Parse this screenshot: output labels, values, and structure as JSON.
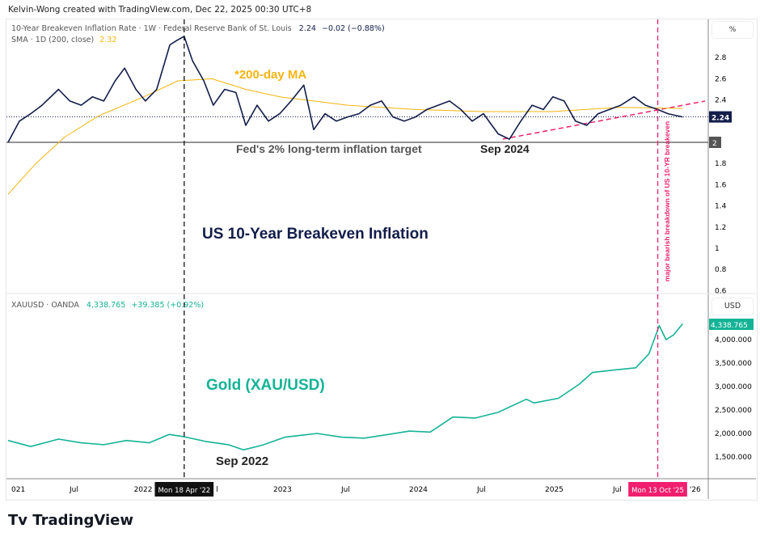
{
  "header": {
    "credit": "Kelvin-Wong created with TradingView.com, Dec 22, 2025 00:30 UTC+8"
  },
  "brand": {
    "logo_text": "TradingView"
  },
  "chart_data": [
    {
      "type": "line",
      "pane": "top",
      "legend": {
        "title": "10-Year Breakeven Inflation Rate · 1W · Federal Reserve Bank of St. Louis",
        "last": "2.24",
        "change": "−0.02 (−0.88%)",
        "sma_label": "SMA · 1D (200, close)",
        "sma_value": "2.32"
      },
      "axis_unit": "%",
      "yticks": [
        "2.8",
        "2.6",
        "2.4",
        "2",
        "1.8",
        "1.6",
        "1.4",
        "1.2",
        "1",
        "0.8",
        "0.6"
      ],
      "ylim": [
        0.55,
        3.1
      ],
      "price_label": "2.24",
      "level_label": "2",
      "series": [
        {
          "name": "10-Year Breakeven Inflation Rate",
          "color": "#131d4a",
          "points": [
            [
              "2021-01-01",
              2.0
            ],
            [
              "2021-02-01",
              2.2
            ],
            [
              "2021-03-01",
              2.27
            ],
            [
              "2021-04-01",
              2.35
            ],
            [
              "2021-05-15",
              2.5
            ],
            [
              "2021-06-15",
              2.39
            ],
            [
              "2021-07-15",
              2.35
            ],
            [
              "2021-08-15",
              2.43
            ],
            [
              "2021-09-15",
              2.39
            ],
            [
              "2021-10-15",
              2.58
            ],
            [
              "2021-11-10",
              2.7
            ],
            [
              "2021-12-10",
              2.5
            ],
            [
              "2022-01-05",
              2.39
            ],
            [
              "2022-02-05",
              2.5
            ],
            [
              "2022-03-10",
              2.92
            ],
            [
              "2022-03-28",
              2.96
            ],
            [
              "2022-04-18",
              3.0
            ],
            [
              "2022-05-10",
              2.77
            ],
            [
              "2022-06-10",
              2.58
            ],
            [
              "2022-07-05",
              2.35
            ],
            [
              "2022-08-05",
              2.5
            ],
            [
              "2022-09-05",
              2.47
            ],
            [
              "2022-10-01",
              2.16
            ],
            [
              "2022-11-01",
              2.35
            ],
            [
              "2022-12-01",
              2.2
            ],
            [
              "2023-01-01",
              2.27
            ],
            [
              "2023-02-01",
              2.39
            ],
            [
              "2023-03-05",
              2.54
            ],
            [
              "2023-04-01",
              2.12
            ],
            [
              "2023-05-01",
              2.27
            ],
            [
              "2023-06-01",
              2.2
            ],
            [
              "2023-07-01",
              2.24
            ],
            [
              "2023-08-01",
              2.27
            ],
            [
              "2023-09-01",
              2.35
            ],
            [
              "2023-10-01",
              2.39
            ],
            [
              "2023-11-01",
              2.24
            ],
            [
              "2023-12-01",
              2.2
            ],
            [
              "2024-01-01",
              2.24
            ],
            [
              "2024-02-01",
              2.31
            ],
            [
              "2024-03-01",
              2.35
            ],
            [
              "2024-04-01",
              2.39
            ],
            [
              "2024-05-01",
              2.31
            ],
            [
              "2024-06-01",
              2.2
            ],
            [
              "2024-07-01",
              2.27
            ],
            [
              "2024-08-10",
              2.08
            ],
            [
              "2024-09-10",
              2.03
            ],
            [
              "2024-10-10",
              2.2
            ],
            [
              "2024-11-10",
              2.35
            ],
            [
              "2024-12-10",
              2.31
            ],
            [
              "2025-01-05",
              2.43
            ],
            [
              "2025-02-05",
              2.39
            ],
            [
              "2025-03-05",
              2.2
            ],
            [
              "2025-04-05",
              2.16
            ],
            [
              "2025-05-05",
              2.27
            ],
            [
              "2025-06-05",
              2.31
            ],
            [
              "2025-07-05",
              2.35
            ],
            [
              "2025-08-10",
              2.43
            ],
            [
              "2025-09-10",
              2.35
            ],
            [
              "2025-10-13",
              2.31
            ],
            [
              "2025-11-10",
              2.27
            ],
            [
              "2025-12-19",
              2.24
            ]
          ]
        },
        {
          "name": "SMA 200",
          "color": "#f5b40f",
          "points": [
            [
              "2021-01-01",
              1.51
            ],
            [
              "2021-03-15",
              1.8
            ],
            [
              "2021-06-01",
              2.05
            ],
            [
              "2021-09-01",
              2.25
            ],
            [
              "2022-01-01",
              2.43
            ],
            [
              "2022-04-01",
              2.58
            ],
            [
              "2022-07-01",
              2.6
            ],
            [
              "2022-10-01",
              2.5
            ],
            [
              "2023-01-01",
              2.43
            ],
            [
              "2023-07-01",
              2.35
            ],
            [
              "2024-01-01",
              2.31
            ],
            [
              "2024-07-01",
              2.29
            ],
            [
              "2025-01-01",
              2.29
            ],
            [
              "2025-07-01",
              2.33
            ],
            [
              "2025-12-19",
              2.32
            ]
          ]
        }
      ],
      "annotations": {
        "sma_note": "*200-day MA",
        "target_note": "Fed's 2% long-term inflation target",
        "low_note": "Sep 2024",
        "title_note": "US 10-Year Breakeven Inflation",
        "breakdown_note": "major bearish breakdown of US 10-YR breakeven"
      },
      "colors": {
        "sma_note": "#f5b40f",
        "title_note": "#131d4a",
        "breakdown": "#f0206e"
      }
    },
    {
      "type": "line",
      "pane": "bottom",
      "legend": {
        "title": "XAUUSD · OANDA",
        "last": "4,338.765",
        "change": "+39.385 (+0.92%)"
      },
      "axis_unit": "USD",
      "yticks": [
        "4,000.000",
        "3,500.000",
        "3,000.000",
        "2,500.000",
        "2,000.000",
        "1,500.000"
      ],
      "ylim": [
        1300,
        4450
      ],
      "price_label": "4,338.765",
      "series": [
        {
          "name": "XAUUSD",
          "color": "#14b396",
          "points": [
            [
              "2021-01-01",
              1850
            ],
            [
              "2021-03-01",
              1720
            ],
            [
              "2021-05-15",
              1880
            ],
            [
              "2021-07-15",
              1800
            ],
            [
              "2021-09-15",
              1760
            ],
            [
              "2021-11-15",
              1850
            ],
            [
              "2022-01-15",
              1800
            ],
            [
              "2022-03-08",
              1980
            ],
            [
              "2022-04-18",
              1930
            ],
            [
              "2022-06-15",
              1830
            ],
            [
              "2022-08-15",
              1760
            ],
            [
              "2022-09-25",
              1650
            ],
            [
              "2022-11-15",
              1750
            ],
            [
              "2023-01-15",
              1920
            ],
            [
              "2023-04-10",
              2000
            ],
            [
              "2023-06-15",
              1920
            ],
            [
              "2023-08-15",
              1900
            ],
            [
              "2023-10-20",
              1980
            ],
            [
              "2023-12-15",
              2050
            ],
            [
              "2024-02-10",
              2030
            ],
            [
              "2024-04-10",
              2350
            ],
            [
              "2024-06-10",
              2330
            ],
            [
              "2024-08-10",
              2450
            ],
            [
              "2024-10-25",
              2730
            ],
            [
              "2024-11-15",
              2650
            ],
            [
              "2025-01-20",
              2750
            ],
            [
              "2025-03-15",
              3050
            ],
            [
              "2025-04-20",
              3300
            ],
            [
              "2025-06-15",
              3350
            ],
            [
              "2025-08-15",
              3400
            ],
            [
              "2025-09-20",
              3700
            ],
            [
              "2025-10-17",
              4300
            ],
            [
              "2025-11-05",
              4000
            ],
            [
              "2025-11-25",
              4100
            ],
            [
              "2025-12-19",
              4338.765
            ]
          ]
        }
      ],
      "annotations": {
        "title_note": "Gold (XAU/USD)",
        "low_note": "Sep 2022"
      },
      "colors": {
        "title_note": "#14b396"
      }
    }
  ],
  "time_axis": {
    "ticks": [
      [
        "2021",
        "021"
      ],
      [
        "2021-07",
        "Jul"
      ],
      [
        "2022",
        "2022"
      ],
      [
        "2022-07",
        "l"
      ],
      [
        "2023",
        "2023"
      ],
      [
        "2023-07",
        "Jul"
      ],
      [
        "2024",
        "2024"
      ],
      [
        "2024-07",
        "Jul"
      ],
      [
        "2025",
        "2025"
      ],
      [
        "2025-07",
        "Jul"
      ],
      [
        "2026",
        "'26"
      ]
    ],
    "cursor_labels": [
      "Mon 18 Apr '22",
      "Mon 13 Oct '25"
    ]
  }
}
